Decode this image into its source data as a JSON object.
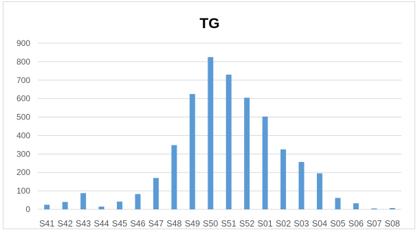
{
  "chart_data": {
    "type": "bar",
    "title": "TG",
    "xlabel": "",
    "ylabel": "",
    "categories": [
      "S41",
      "S42",
      "S43",
      "S44",
      "S45",
      "S46",
      "S47",
      "S48",
      "S49",
      "S50",
      "S51",
      "S52",
      "S01",
      "S02",
      "S03",
      "S04",
      "S05",
      "S06",
      "S07",
      "S08"
    ],
    "values": [
      25,
      40,
      88,
      15,
      42,
      83,
      170,
      348,
      625,
      825,
      730,
      605,
      503,
      325,
      257,
      195,
      62,
      33,
      5,
      7
    ],
    "ylim": [
      0,
      900
    ],
    "yticks": [
      0,
      100,
      200,
      300,
      400,
      500,
      600,
      700,
      800,
      900
    ],
    "grid": true,
    "legend": "none",
    "colors": {
      "bar": "#5b9bd5",
      "grid": "#d9d9d9",
      "axis_text": "#595959",
      "title": "#000000",
      "border": "#d9d9d9"
    }
  }
}
